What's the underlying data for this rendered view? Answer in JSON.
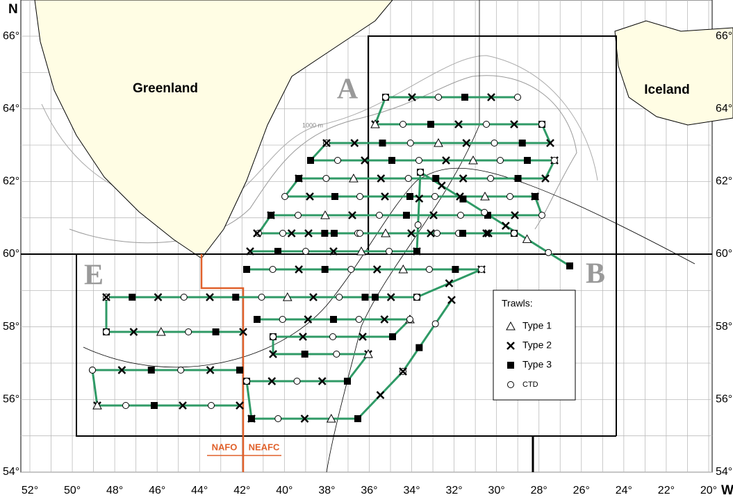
{
  "map": {
    "north_label": "N",
    "west_label": "W",
    "lat_labels": [
      "54°",
      "56°",
      "58°",
      "60°",
      "62°",
      "64°",
      "66°"
    ],
    "lon_labels": [
      "52°",
      "50°",
      "48°",
      "46°",
      "44°",
      "42°",
      "40°",
      "38°",
      "36°",
      "34°",
      "32°",
      "30°",
      "28°",
      "26°",
      "24°",
      "22°",
      "20°"
    ],
    "places": [
      "Greenland",
      "Iceland"
    ],
    "areas": [
      "A",
      "B",
      "E"
    ],
    "contour_label": "1000 m",
    "legend": {
      "title": "Trawls:",
      "items": [
        "Type 1",
        "Type 2",
        "Type 3",
        "CTD"
      ]
    },
    "boundaries": [
      "NAFO",
      "NEAFC"
    ]
  }
}
